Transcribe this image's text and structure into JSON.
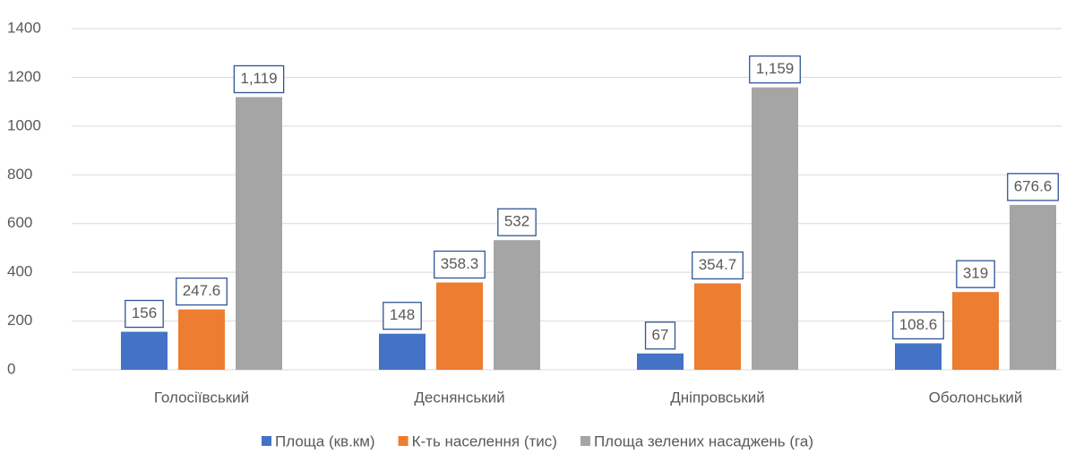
{
  "chart_data": {
    "type": "bar",
    "categories": [
      "Голосіївський",
      "Деснянський",
      "Дніпровський",
      "Оболонський"
    ],
    "series": [
      {
        "name": "Площа (кв.км)",
        "color": "#4472c4",
        "values": [
          156,
          148,
          67,
          108.6
        ]
      },
      {
        "name": "К-ть населення (тис)",
        "color": "#ed7d31",
        "values": [
          247.6,
          358.3,
          354.7,
          319
        ]
      },
      {
        "name": "Площа зелених насаджень (га)",
        "color": "#a5a5a5",
        "values": [
          1119,
          532,
          1159,
          676.6
        ],
        "value_labels": [
          "1,119",
          "532",
          "1,159",
          "676.6"
        ]
      }
    ],
    "ylim": [
      0,
      1400
    ],
    "yticks": [
      0,
      200,
      400,
      600,
      800,
      1000,
      1200,
      1400
    ],
    "grid": true,
    "legend": "bottom"
  }
}
